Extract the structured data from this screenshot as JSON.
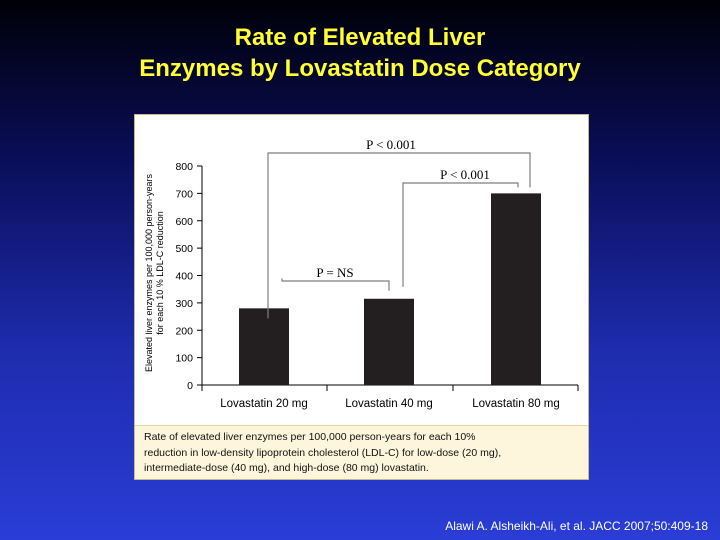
{
  "slide": {
    "title_line1": "Rate of Elevated Liver",
    "title_line2": "Enzymes by Lovastatin Dose Category",
    "citation": "Alawi A. Alsheikh-Ali, et al. JACC 2007;50:409-18"
  },
  "caption": {
    "line1": "Rate of elevated liver enzymes per 100,000 person-years for each 10%",
    "line2": "reduction in low-density lipoprotein cholesterol (LDL-C) for low-dose (20 mg),",
    "line3": "intermediate-dose (40 mg), and high-dose (80 mg) lovastatin."
  },
  "chart_data": {
    "type": "bar",
    "title": "",
    "xlabel": "",
    "ylabel_line1": "Elevated liver enzymes per 100,000 person-years",
    "ylabel_line2": "for each 10 % LDL-C reduction",
    "categories": [
      "Lovastatin 20 mg",
      "Lovastatin 40 mg",
      "Lovastatin 80 mg"
    ],
    "values": [
      280,
      315,
      700
    ],
    "ylim": [
      0,
      800
    ],
    "yticks": [
      0,
      100,
      200,
      300,
      400,
      500,
      600,
      700,
      800
    ],
    "grid": false,
    "bar_color": "#231f20",
    "annotations": [
      {
        "text": "P = NS",
        "from": 0,
        "to": 1,
        "level": 380
      },
      {
        "text": "P < 0.001",
        "from": 1,
        "to": 2,
        "level": 740
      },
      {
        "text": "P < 0.001",
        "from": 0,
        "to": 2,
        "level": 850
      }
    ]
  }
}
